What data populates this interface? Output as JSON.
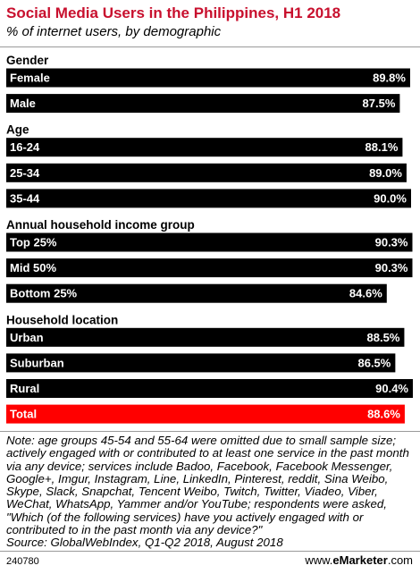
{
  "title": "Social Media Users in the Philippines, H1 2018",
  "subtitle": "% of internet users, by demographic",
  "note": "Note: age groups 45-54 and 55-64 were omitted due to small sample size; actively engaged with or contributed to at least one service in the past month via any device; services include Badoo, Facebook, Facebook Messenger, Google+, Imgur, Instagram, Line, LinkedIn, Pinterest, reddit, Sina Weibo, Skype, Slack, Snapchat, Tencent Weibo, Twitch, Twitter, Viadeo, Viber, WeChat, WhatsApp, Yammer and/or YouTube; respondents were asked, \"Which (of the following services) have you actively engaged with or contributed to in the past month via any device?\"",
  "source": "Source: GlobalWebIndex, Q1-Q2 2018, August 2018",
  "chart_id": "240780",
  "brand": {
    "prefix": "www.",
    "name": "eMarketer",
    "suffix": ".com"
  },
  "colors": {
    "bar": "#000000",
    "highlight": "#ff0000",
    "title": "#c8102e"
  },
  "chart_data": {
    "type": "bar",
    "orientation": "horizontal",
    "title": "Social Media Users in the Philippines, H1 2018",
    "subtitle": "% of internet users, by demographic",
    "value_format": "{v}%",
    "xlim": [
      0,
      90.4
    ],
    "groups": [
      {
        "name": "Gender",
        "items": [
          {
            "label": "Female",
            "value": 89.8
          },
          {
            "label": "Male",
            "value": 87.5
          }
        ]
      },
      {
        "name": "Age",
        "items": [
          {
            "label": "16-24",
            "value": 88.1
          },
          {
            "label": "25-34",
            "value": 89.0
          },
          {
            "label": "35-44",
            "value": 90.0
          }
        ]
      },
      {
        "name": "Annual household income group",
        "items": [
          {
            "label": "Top 25%",
            "value": 90.3
          },
          {
            "label": "Mid 50%",
            "value": 90.3
          },
          {
            "label": "Bottom 25%",
            "value": 84.6
          }
        ]
      },
      {
        "name": "Household location",
        "items": [
          {
            "label": "Urban",
            "value": 88.5
          },
          {
            "label": "Suburban",
            "value": 86.5
          },
          {
            "label": "Rural",
            "value": 90.4
          },
          {
            "label": "Total",
            "value": 88.6,
            "highlight": true
          }
        ]
      }
    ]
  }
}
